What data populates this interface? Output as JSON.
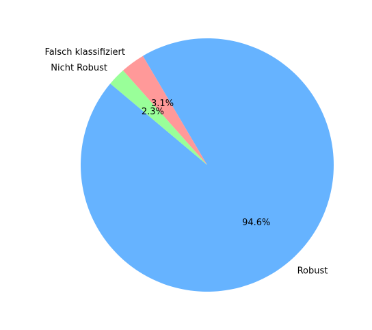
{
  "chart_data": {
    "type": "pie",
    "title": "",
    "slices": [
      {
        "label": "Robust",
        "value": 94.6,
        "percent_label": "94.6%",
        "color": "#66b3ff"
      },
      {
        "label": "Falsch klassifiziert",
        "value": 3.1,
        "percent_label": "3.1%",
        "color": "#ff9999"
      },
      {
        "label": "Nicht Robust",
        "value": 2.3,
        "percent_label": "2.3%",
        "color": "#99ff99"
      }
    ],
    "start_angle_deg": 140,
    "direction": "counterclockwise",
    "legend": "none"
  }
}
